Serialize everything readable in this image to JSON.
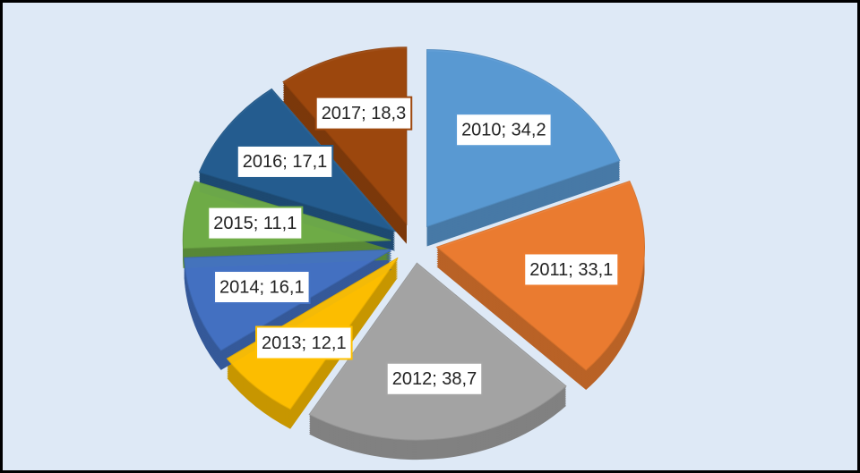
{
  "chart_data": {
    "type": "pie",
    "categories": [
      "2010",
      "2011",
      "2012",
      "2013",
      "2014",
      "2015",
      "2016",
      "2017"
    ],
    "values": [
      34.2,
      33.1,
      38.7,
      12.1,
      16.1,
      11.1,
      17.1,
      18.3
    ],
    "value_labels": [
      "2010; 34,2",
      "2011; 33,1",
      "2012; 38,7",
      "2013; 12,1",
      "2014; 16,1",
      "2015; 11,1",
      "2016; 17,1",
      "2017; 18,3"
    ],
    "colors": [
      "#5b9bd5",
      "#ed7d31",
      "#a5a5a5",
      "#ffc000",
      "#4472c4",
      "#70ad47",
      "#255e91",
      "#9e480e"
    ]
  }
}
